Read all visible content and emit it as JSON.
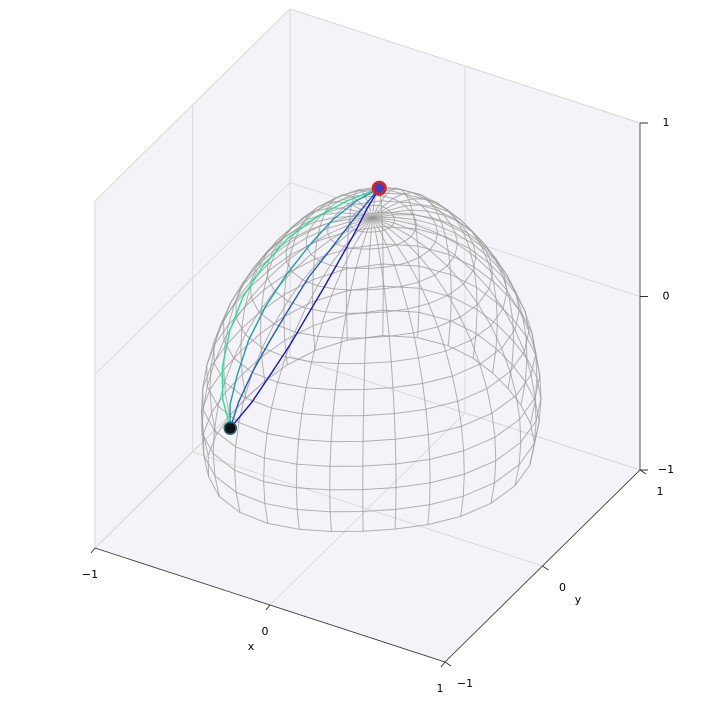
{
  "chart_data": {
    "type": "line3d",
    "x_label": "x",
    "y_label": "y",
    "xlim": [
      -1,
      1
    ],
    "ylim": [
      -1,
      1
    ],
    "zlim": [
      -1,
      1
    ],
    "xticks": [
      {
        "value": -1,
        "label": "−1"
      },
      0,
      1
    ],
    "yticks": [
      {
        "value": -1,
        "label": "−1"
      },
      0,
      1
    ],
    "zticks": [
      {
        "value": -1,
        "label": "−1"
      },
      0,
      1
    ],
    "grid": true,
    "series": [
      {
        "color": "#1414d2",
        "x": [
          -0.45,
          -0.41,
          -0.37,
          -0.33,
          -0.3,
          -0.26,
          -0.22,
          -0.18,
          -0.14,
          -0.1
        ],
        "y": [
          -0.6,
          -0.45,
          -0.32,
          -0.2,
          -0.08,
          0.02,
          0.1,
          0.18,
          0.25,
          0.3
        ],
        "z": [
          -0.35,
          -0.27,
          -0.16,
          -0.05,
          0.06,
          0.18,
          0.3,
          0.42,
          0.55,
          0.65
        ]
      },
      {
        "color": "#1c5ec6",
        "x": [
          -0.45,
          -0.43,
          -0.4,
          -0.36,
          -0.32,
          -0.28,
          -0.23,
          -0.18,
          -0.14,
          -0.1
        ],
        "y": [
          -0.6,
          -0.55,
          -0.45,
          -0.35,
          -0.22,
          -0.1,
          0.02,
          0.12,
          0.22,
          0.3
        ],
        "z": [
          -0.35,
          -0.22,
          -0.08,
          0.05,
          0.18,
          0.3,
          0.4,
          0.5,
          0.58,
          0.65
        ]
      },
      {
        "color": "#1e9cb4",
        "x": [
          -0.45,
          -0.44,
          -0.42,
          -0.4,
          -0.36,
          -0.31,
          -0.25,
          -0.2,
          -0.15,
          -0.1
        ],
        "y": [
          -0.6,
          -0.62,
          -0.58,
          -0.5,
          -0.4,
          -0.28,
          -0.14,
          0.0,
          0.16,
          0.3
        ],
        "z": [
          -0.35,
          -0.2,
          -0.04,
          0.12,
          0.27,
          0.4,
          0.52,
          0.6,
          0.64,
          0.65
        ]
      },
      {
        "color": "#22e496",
        "x": [
          -0.45,
          -0.46,
          -0.45,
          -0.43,
          -0.4,
          -0.35,
          -0.29,
          -0.22,
          -0.16,
          -0.1
        ],
        "y": [
          -0.6,
          -0.66,
          -0.68,
          -0.64,
          -0.56,
          -0.44,
          -0.3,
          -0.12,
          0.08,
          0.3
        ],
        "z": [
          -0.35,
          -0.15,
          0.05,
          0.24,
          0.4,
          0.53,
          0.63,
          0.68,
          0.68,
          0.65
        ]
      }
    ]
  }
}
